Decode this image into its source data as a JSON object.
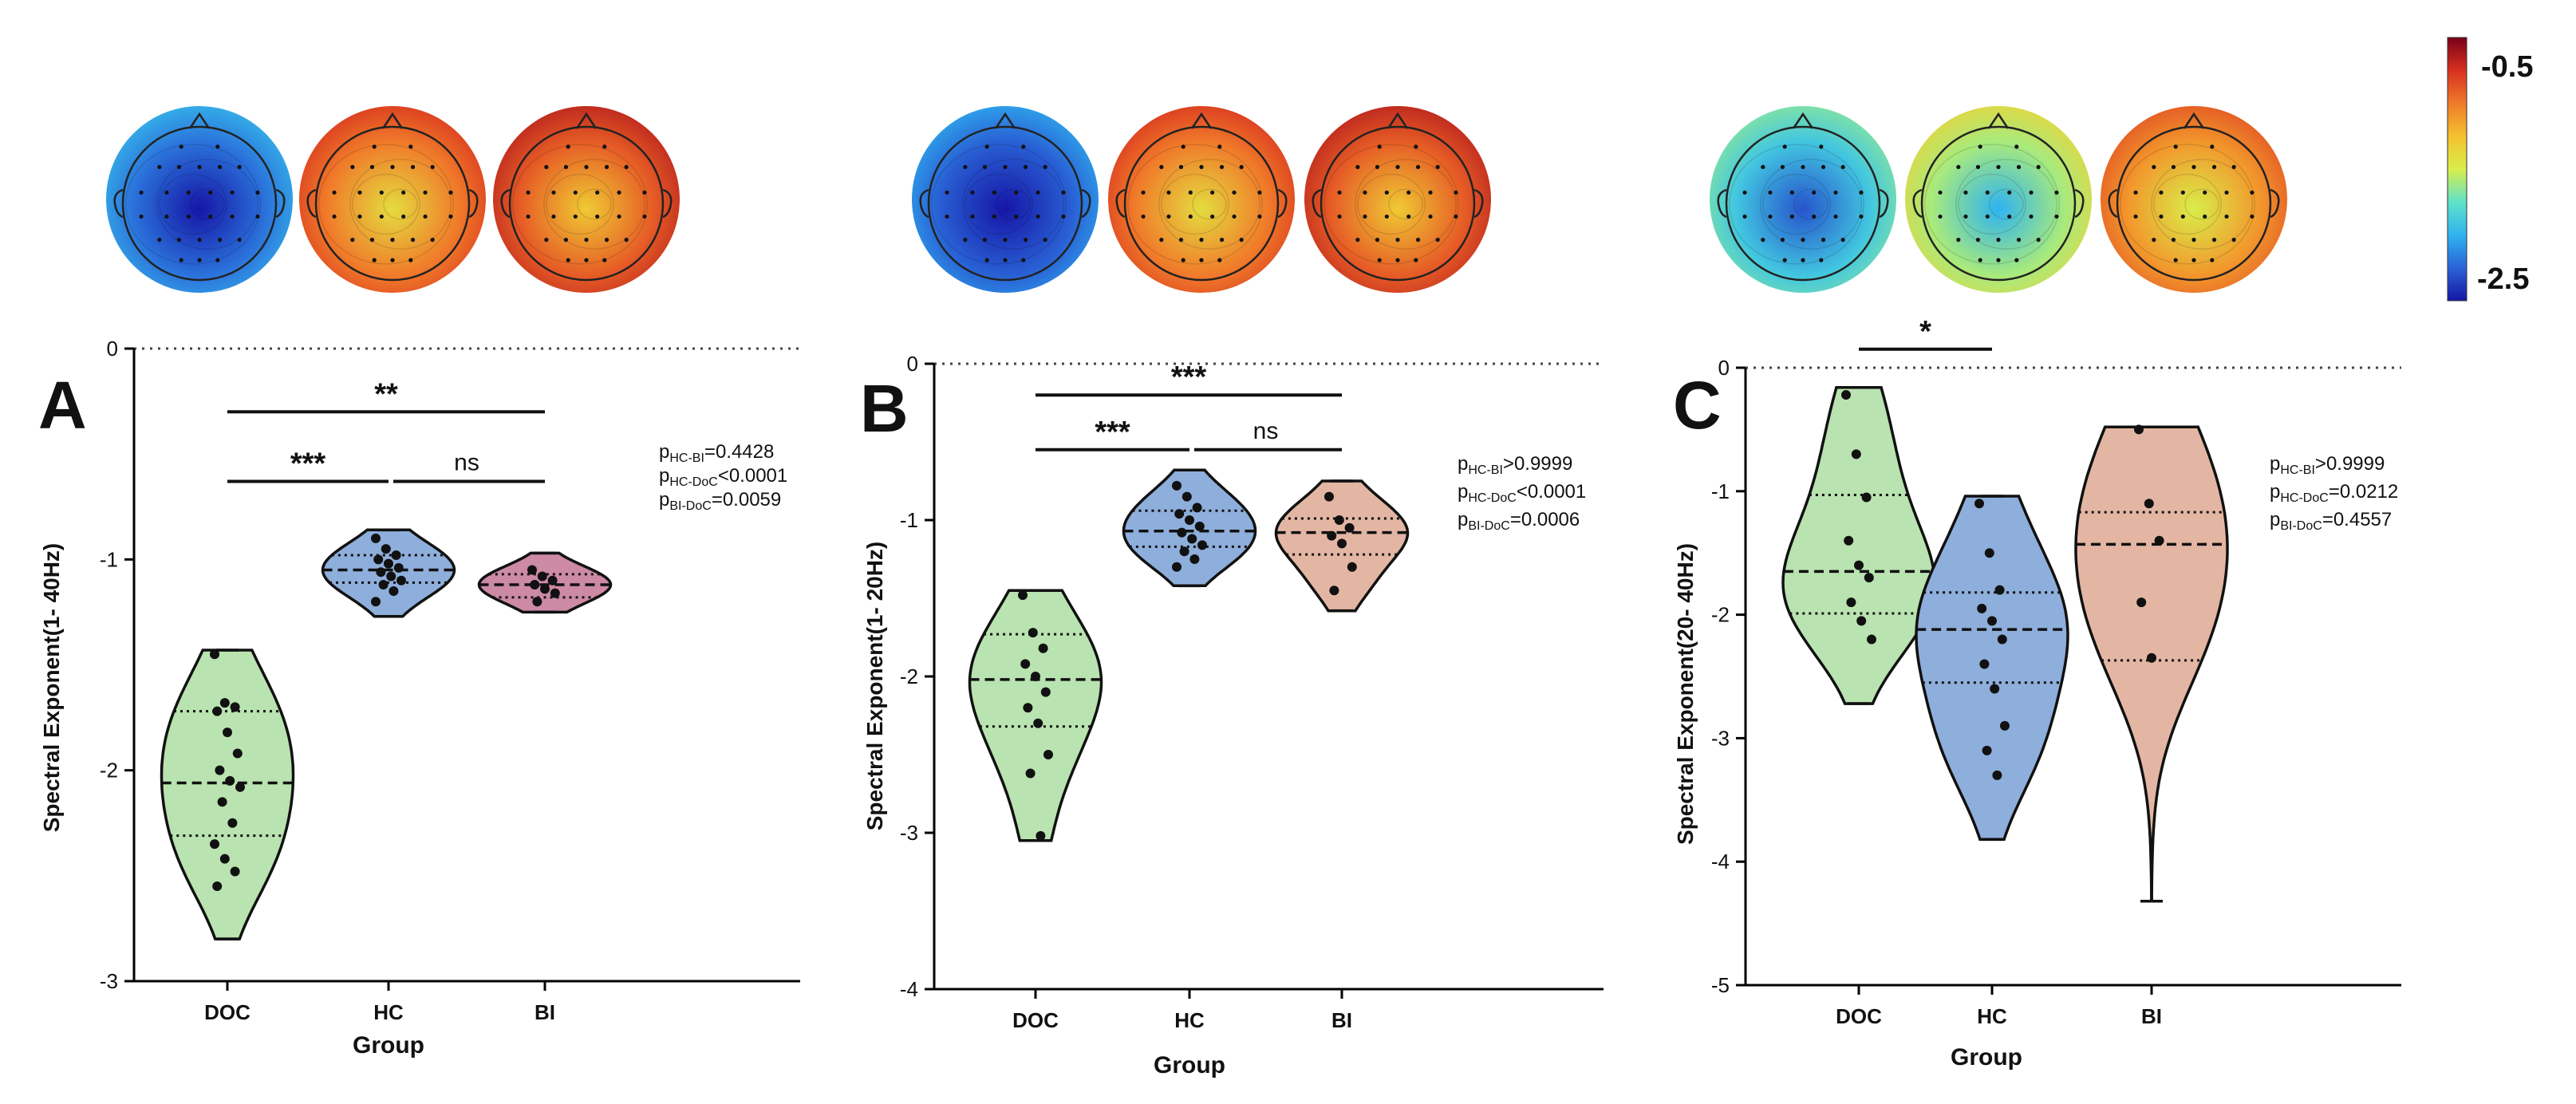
{
  "colorbar": {
    "max_label": "-0.5",
    "min_label": "-2.5",
    "colors": [
      "#7a0019",
      "#d7301f",
      "#f07a2a",
      "#f5c12e",
      "#d9ee4a",
      "#5fe3c8",
      "#2fb3f0",
      "#2a63d6",
      "#1616a6"
    ]
  },
  "topomaps": [
    {
      "panel": "A",
      "group": "DOC",
      "level": 0.15
    },
    {
      "panel": "A",
      "group": "HC",
      "level": 0.75
    },
    {
      "panel": "A",
      "group": "BI",
      "level": 0.8
    },
    {
      "panel": "B",
      "group": "DOC",
      "level": 0.12
    },
    {
      "panel": "B",
      "group": "HC",
      "level": 0.75
    },
    {
      "panel": "B",
      "group": "BI",
      "level": 0.8
    },
    {
      "panel": "C",
      "group": "DOC",
      "level": 0.3
    },
    {
      "panel": "C",
      "group": "HC",
      "level": 0.45
    },
    {
      "panel": "C",
      "group": "BI",
      "level": 0.7
    }
  ],
  "chart_data": [
    {
      "type": "violin",
      "panel_label": "A",
      "ylabel": "Spectral Exponent(1- 40Hz)",
      "xlabel": "Group",
      "categories": [
        "DOC",
        "HC",
        "BI"
      ],
      "ylim": [
        -3,
        0
      ],
      "yticks": [
        0,
        -1,
        -2,
        -3
      ],
      "ytick_labels": [
        "0",
        "-1",
        "-2",
        "-3"
      ],
      "reference_line": 0,
      "series": [
        {
          "group": "DOC",
          "color": "#b9e3b0",
          "min": -2.8,
          "max": -1.43,
          "median": -2.06,
          "q1": -2.31,
          "q3": -1.72,
          "points": [
            -1.45,
            -1.68,
            -1.7,
            -1.72,
            -1.82,
            -1.92,
            -2.0,
            -2.05,
            -2.08,
            -2.15,
            -2.25,
            -2.35,
            -2.42,
            -2.48,
            -2.55
          ]
        },
        {
          "group": "HC",
          "color": "#8eaedb",
          "min": -1.27,
          "max": -0.86,
          "median": -1.05,
          "q1": -1.11,
          "q3": -0.98,
          "points": [
            -0.9,
            -0.95,
            -0.98,
            -1.0,
            -1.02,
            -1.04,
            -1.06,
            -1.08,
            -1.1,
            -1.12,
            -1.15,
            -1.2
          ]
        },
        {
          "group": "BI",
          "color": "#cc8aa5",
          "min": -1.25,
          "max": -0.97,
          "median": -1.12,
          "q1": -1.18,
          "q3": -1.07,
          "points": [
            -1.05,
            -1.08,
            -1.1,
            -1.12,
            -1.14,
            -1.16,
            -1.2
          ]
        }
      ],
      "significance": [
        {
          "from": "DOC",
          "to": "BI",
          "label": "**",
          "y": -0.3
        },
        {
          "from": "DOC",
          "to": "HC",
          "label": "***",
          "y": -0.63
        },
        {
          "from": "HC",
          "to": "BI",
          "label": "ns",
          "y": -0.63
        }
      ],
      "pvalues": [
        {
          "sub": "HC-BI",
          "rest": "=0.4428"
        },
        {
          "sub": "HC-DoC",
          "rest": "<0.0001"
        },
        {
          "sub": "BI-DoC",
          "rest": "=0.0059"
        }
      ]
    },
    {
      "type": "violin",
      "panel_label": "B",
      "ylabel": "Spectral Exponent(1- 20Hz)",
      "xlabel": "Group",
      "categories": [
        "DOC",
        "HC",
        "BI"
      ],
      "ylim": [
        -4,
        0
      ],
      "yticks": [
        0,
        -1,
        -2,
        -3,
        -4
      ],
      "ytick_labels": [
        "0",
        "-1",
        "-2",
        "-3",
        "-4"
      ],
      "reference_line": 0,
      "series": [
        {
          "group": "DOC",
          "color": "#b9e3b0",
          "min": -3.05,
          "max": -1.45,
          "median": -2.02,
          "q1": -2.32,
          "q3": -1.73,
          "points": [
            -1.48,
            -1.72,
            -1.82,
            -1.92,
            -2.0,
            -2.1,
            -2.2,
            -2.3,
            -2.5,
            -2.62,
            -3.02
          ]
        },
        {
          "group": "HC",
          "color": "#8eaedb",
          "min": -1.42,
          "max": -0.68,
          "median": -1.07,
          "q1": -1.17,
          "q3": -0.94,
          "points": [
            -0.78,
            -0.85,
            -0.92,
            -0.96,
            -1.0,
            -1.04,
            -1.08,
            -1.12,
            -1.16,
            -1.2,
            -1.25,
            -1.3
          ]
        },
        {
          "group": "BI",
          "color": "#e3b6a3",
          "min": -1.58,
          "max": -0.75,
          "median": -1.08,
          "q1": -1.22,
          "q3": -0.99,
          "points": [
            -0.85,
            -1.0,
            -1.05,
            -1.1,
            -1.15,
            -1.3,
            -1.45
          ]
        }
      ],
      "significance": [
        {
          "from": "DOC",
          "to": "BI",
          "label": "***",
          "y": -0.2
        },
        {
          "from": "DOC",
          "to": "HC",
          "label": "***",
          "y": -0.55
        },
        {
          "from": "HC",
          "to": "BI",
          "label": "ns",
          "y": -0.55
        }
      ],
      "pvalues": [
        {
          "sub": "HC-BI",
          "rest": ">0.9999"
        },
        {
          "sub": "HC-DoC",
          "rest": "<0.0001"
        },
        {
          "sub": "BI-DoC",
          "rest": "=0.0006"
        }
      ]
    },
    {
      "type": "violin",
      "panel_label": "C",
      "ylabel": "Spectral Exponent(20- 40Hz)",
      "xlabel": "Group",
      "categories": [
        "DOC",
        "HC",
        "BI"
      ],
      "ylim": [
        -5,
        0
      ],
      "yticks": [
        0,
        -1,
        -2,
        -3,
        -4,
        -5
      ],
      "ytick_labels": [
        "0",
        "-1",
        "-2",
        "-3",
        "-4",
        "-5"
      ],
      "reference_line": 0,
      "series": [
        {
          "group": "DOC",
          "color": "#b9e3b0",
          "min": -2.72,
          "max": -0.16,
          "median": -1.65,
          "q1": -1.99,
          "q3": -1.03,
          "points": [
            -0.22,
            -0.7,
            -1.05,
            -1.4,
            -1.6,
            -1.7,
            -1.9,
            -2.05,
            -2.2
          ]
        },
        {
          "group": "HC",
          "color": "#8eaedb",
          "min": -3.82,
          "max": -1.04,
          "median": -2.12,
          "q1": -2.55,
          "q3": -1.82,
          "points": [
            -1.1,
            -1.5,
            -1.8,
            -1.95,
            -2.05,
            -2.2,
            -2.4,
            -2.6,
            -2.9,
            -3.1,
            -3.3
          ]
        },
        {
          "group": "BI",
          "color": "#e3b6a3",
          "min": -4.32,
          "max": -0.48,
          "median": -1.43,
          "q1": -2.37,
          "q3": -1.17,
          "points": [
            -0.5,
            -1.1,
            -1.4,
            -1.9,
            -2.35
          ]
        }
      ],
      "significance": [
        {
          "from": "DOC",
          "to": "HC",
          "label": "*",
          "y": 0.15
        }
      ],
      "pvalues": [
        {
          "sub": "HC-BI",
          "rest": ">0.9999"
        },
        {
          "sub": "HC-DoC",
          "rest": "=0.0212"
        },
        {
          "sub": "BI-DoC",
          "rest": "=0.4557"
        }
      ]
    }
  ]
}
